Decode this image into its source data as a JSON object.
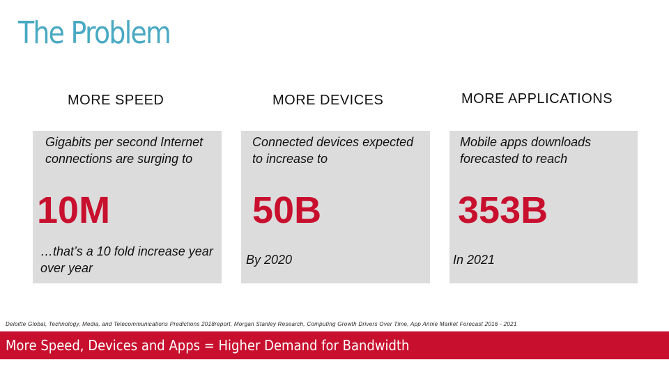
{
  "slide": {
    "title": "The Problem",
    "columns": [
      {
        "heading": "MORE SPEED",
        "intro": "Gigabits per second Internet connections are surging to",
        "value": "10M",
        "footnote": "…that’s a 10 fold increase year over year"
      },
      {
        "heading": "MORE DEVICES",
        "intro": "Connected devices expected to increase to",
        "value": "50B",
        "footnote": "By 2020"
      },
      {
        "heading": "MORE APPLICATIONS",
        "intro": "Mobile apps downloads forecasted to reach",
        "value": "353B",
        "footnote": "In 2021"
      }
    ],
    "sources": "Deloitte Global, Technology, Media, and Telecommunications Predictions 2018report, Morgan Stanley Research, Computing Growth Drivers Over Time, App Annie Market Forecast 2016 - 2021",
    "banner": "More Speed, Devices and Apps = Higher Demand for Bandwidth"
  },
  "colors": {
    "title": "#49a9c3",
    "accent_red": "#c8102e",
    "card_bg": "#dcdcdc"
  }
}
